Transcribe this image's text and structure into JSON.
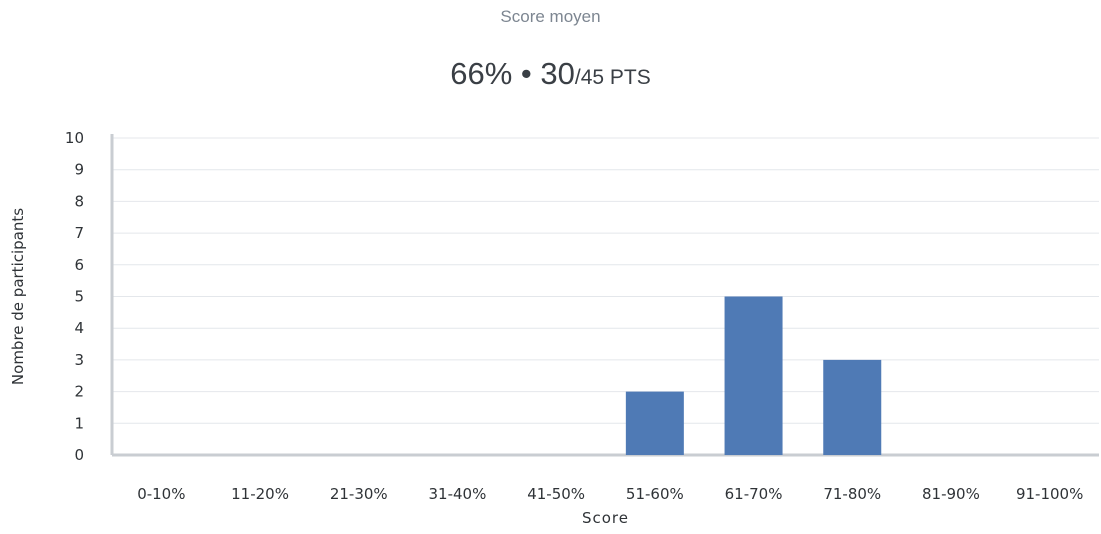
{
  "summary": {
    "caption": "Score moyen",
    "percent": "66%",
    "separator": " • ",
    "points": "30",
    "total": "/45 PTS"
  },
  "colors": {
    "bar": "#4f7ab5",
    "grid": "#e4e7eb",
    "axis": "#c9cdd2",
    "text": "#2f3337"
  },
  "chart_data": {
    "type": "bar",
    "categories": [
      "0-10%",
      "11-20%",
      "21-30%",
      "31-40%",
      "41-50%",
      "51-60%",
      "61-70%",
      "71-80%",
      "81-90%",
      "91-100%"
    ],
    "values": [
      0,
      0,
      0,
      0,
      0,
      2,
      5,
      3,
      0,
      0
    ],
    "xlabel": "Score",
    "ylabel": "Nombre de participants",
    "ylim": [
      0,
      10
    ],
    "yticks": [
      0,
      1,
      2,
      3,
      4,
      5,
      6,
      7,
      8,
      9,
      10
    ],
    "grid": true,
    "legend": "none"
  }
}
